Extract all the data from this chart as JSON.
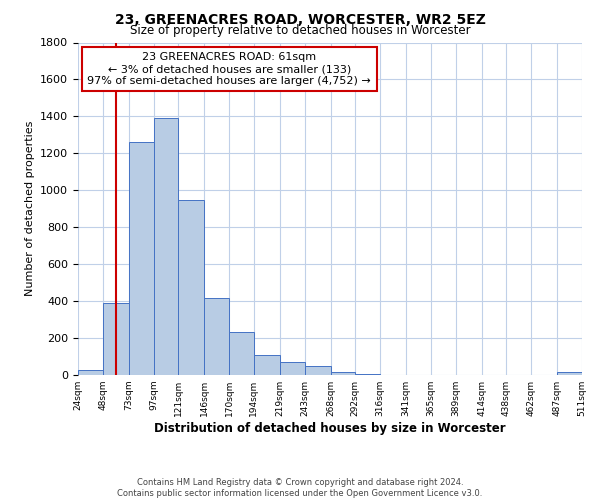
{
  "title": "23, GREENACRES ROAD, WORCESTER, WR2 5EZ",
  "subtitle": "Size of property relative to detached houses in Worcester",
  "xlabel": "Distribution of detached houses by size in Worcester",
  "ylabel": "Number of detached properties",
  "bar_edges": [
    24,
    48,
    73,
    97,
    121,
    146,
    170,
    194,
    219,
    243,
    268,
    292,
    316,
    341,
    365,
    389,
    414,
    438,
    462,
    487,
    511
  ],
  "bar_heights": [
    25,
    390,
    1260,
    1390,
    950,
    415,
    235,
    110,
    70,
    50,
    15,
    5,
    0,
    0,
    0,
    0,
    0,
    0,
    0,
    15
  ],
  "bar_color": "#b8cce4",
  "bar_edgecolor": "#4472c4",
  "ylim": [
    0,
    1800
  ],
  "yticks": [
    0,
    200,
    400,
    600,
    800,
    1000,
    1200,
    1400,
    1600,
    1800
  ],
  "property_line_x": 61,
  "annotation_title": "23 GREENACRES ROAD: 61sqm",
  "annotation_line1": "← 3% of detached houses are smaller (133)",
  "annotation_line2": "97% of semi-detached houses are larger (4,752) →",
  "annotation_box_color": "#ffffff",
  "annotation_box_edgecolor": "#cc0000",
  "vline_color": "#cc0000",
  "tick_labels": [
    "24sqm",
    "48sqm",
    "73sqm",
    "97sqm",
    "121sqm",
    "146sqm",
    "170sqm",
    "194sqm",
    "219sqm",
    "243sqm",
    "268sqm",
    "292sqm",
    "316sqm",
    "341sqm",
    "365sqm",
    "389sqm",
    "414sqm",
    "438sqm",
    "462sqm",
    "487sqm",
    "511sqm"
  ],
  "footer1": "Contains HM Land Registry data © Crown copyright and database right 2024.",
  "footer2": "Contains public sector information licensed under the Open Government Licence v3.0.",
  "bg_color": "#ffffff",
  "grid_color": "#c0d0e8"
}
